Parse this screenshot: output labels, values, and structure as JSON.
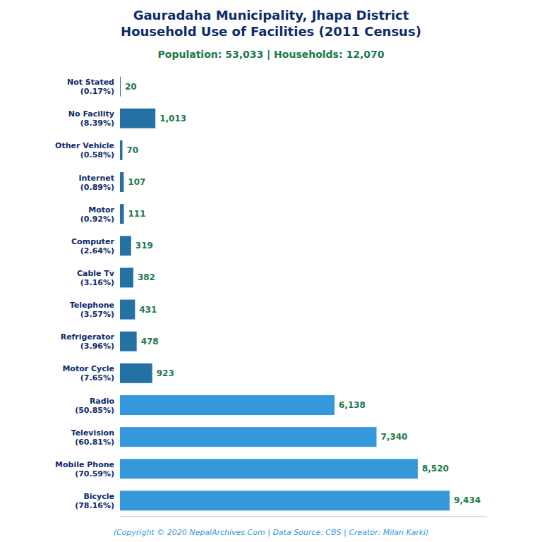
{
  "chart_data": {
    "type": "bar",
    "orientation": "horizontal",
    "title": "Gauradaha Municipality, Jhapa District\nHousehold Use of Facilities (2011 Census)",
    "subtitle": "Population: 53,033 | Households: 12,070",
    "annotations": [
      "(Copyright © 2020 NepalArchives.Com | Data Source: CBS | Creator: Milan Karki)"
    ],
    "categories": [
      "Not Stated\n(0.17%)",
      "No Facility\n(8.39%)",
      "Other Vehicle\n(0.58%)",
      "Internet\n(0.89%)",
      "Motor\n(0.92%)",
      "Computer\n(2.64%)",
      "Cable Tv\n(3.16%)",
      "Telephone\n(3.57%)",
      "Refrigerator\n(3.96%)",
      "Motor Cycle\n(7.65%)",
      "Radio\n(50.85%)",
      "Television\n(60.81%)",
      "Mobile Phone\n(70.59%)",
      "Bicycle\n(78.16%)"
    ],
    "values": [
      20,
      1013,
      70,
      107,
      111,
      319,
      382,
      431,
      478,
      923,
      6138,
      7340,
      8520,
      9434
    ],
    "value_labels": [
      "20",
      "1,013",
      "70",
      "107",
      "111",
      "319",
      "382",
      "431",
      "478",
      "923",
      "6,138",
      "7,340",
      "8,520",
      "9,434"
    ],
    "colors": [
      "#2471a3",
      "#2471a3",
      "#2471a3",
      "#2471a3",
      "#2471a3",
      "#2471a3",
      "#2471a3",
      "#2471a3",
      "#2471a3",
      "#2471a3",
      "#3498db",
      "#3498db",
      "#3498db",
      "#3498db"
    ],
    "xlim": [
      0,
      10500
    ],
    "data_labels": true,
    "tick_labels": "y",
    "grid": false
  }
}
